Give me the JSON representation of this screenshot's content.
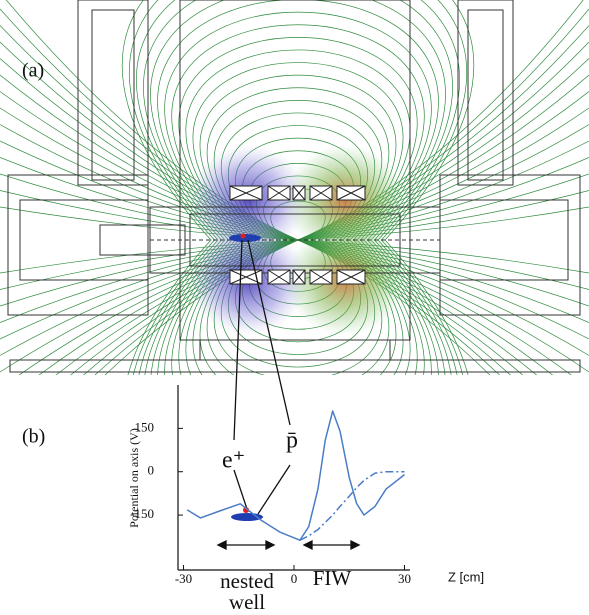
{
  "chart_data": {
    "type": "line",
    "annotations": {
      "panel_a": "(a)",
      "panel_b": "(b)",
      "positron": "e⁺",
      "antiproton": "p̄",
      "nested_1": "nested",
      "nested_2": "well",
      "fiw": "FIW"
    },
    "y_label": "Potential on axis (V)",
    "x_label": "Z [cm]",
    "x": [
      -29,
      -25.4,
      -20,
      -14.6,
      -9,
      -3.8,
      1.6,
      4,
      6.5,
      8.5,
      10.5,
      12.5,
      15,
      17,
      19,
      22,
      25,
      30
    ],
    "series": [
      {
        "color": "#4a7cc7",
        "style": "solid",
        "values": [
          -132,
          -160,
          -135,
          -111,
          -167,
          -209,
          -237,
          -190,
          -60,
          110,
          210,
          140,
          -20,
          -110,
          -150,
          -120,
          -60,
          -10
        ]
      },
      {
        "color": "#4a7cc7",
        "style": "dashdot",
        "values": [
          null,
          null,
          null,
          null,
          null,
          null,
          -237,
          -222,
          -200,
          -175,
          -150,
          -120,
          -85,
          -55,
          -30,
          -5,
          0,
          0
        ]
      }
    ],
    "xlim": [
      -31.5,
      31.5
    ],
    "ylim": [
      -340,
      300
    ],
    "xticks": [
      -30,
      0,
      30
    ],
    "yticks": [
      150,
      0,
      -150
    ],
    "grid": false
  }
}
